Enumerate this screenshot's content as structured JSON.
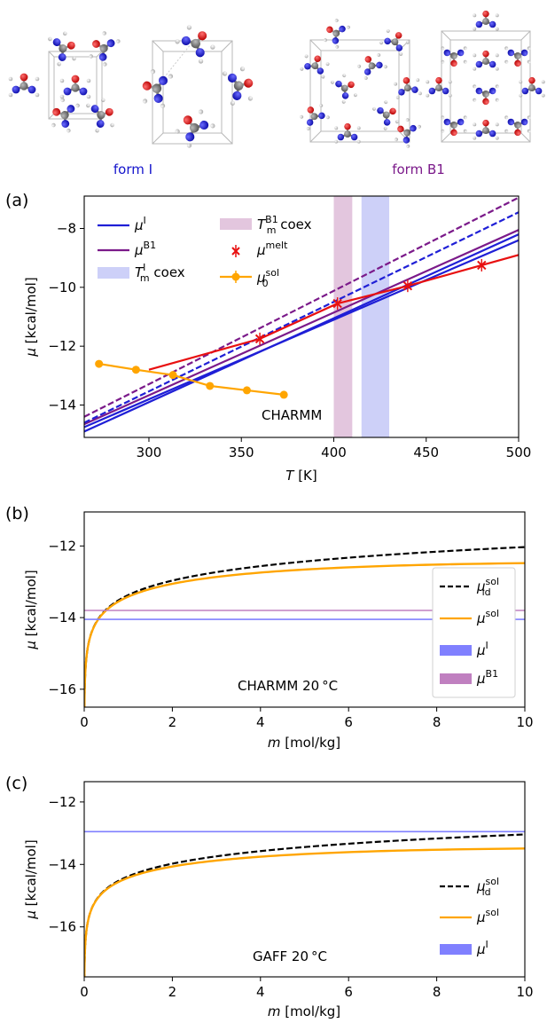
{
  "top": {
    "form_i_label": "form I",
    "form_b1_label": "form B1",
    "form_i_color": "#1515cc",
    "form_b1_color": "#7b1a8a"
  },
  "chart_data": [
    {
      "panel": "(a)",
      "type": "line",
      "xlabel": "T [K]",
      "ylabel": "μ [kcal/mol]",
      "xlim": [
        265,
        500
      ],
      "ylim": [
        -15.1,
        -6.9
      ],
      "xticks": [
        300,
        350,
        400,
        450,
        500
      ],
      "yticks": [
        -14,
        -12,
        -10,
        -8
      ],
      "annotation": "CHARMM",
      "legend_position": "top-left",
      "series": [
        {
          "name": "μ^I",
          "color": "#1f1fd6",
          "style": "solid",
          "x": [
            265,
            500
          ],
          "y": [
            -14.9,
            -8.2
          ]
        },
        {
          "name": "",
          "color": "#1f1fd6",
          "style": "solid",
          "x": [
            265,
            500
          ],
          "y": [
            -14.75,
            -8.4
          ]
        },
        {
          "name": "μ^B1",
          "color": "#7b1a8a",
          "style": "solid",
          "x": [
            265,
            500
          ],
          "y": [
            -14.65,
            -8.05
          ]
        },
        {
          "name": "",
          "color": "#1f1fd6",
          "style": "dashed",
          "x": [
            265,
            500
          ],
          "y": [
            -14.6,
            -7.45
          ]
        },
        {
          "name": "",
          "color": "#7b1a8a",
          "style": "dashed",
          "x": [
            265,
            500
          ],
          "y": [
            -14.4,
            -6.95
          ]
        },
        {
          "name": "",
          "color": "#e81010",
          "style": "solid",
          "x": [
            300,
            360,
            402,
            440,
            480,
            500
          ],
          "y": [
            -12.8,
            -11.75,
            -10.55,
            -9.95,
            -9.25,
            -8.9
          ]
        },
        {
          "name": "μ^melt",
          "color": "#e81010",
          "style": "markers",
          "x": [
            360,
            402,
            440,
            480
          ],
          "y": [
            -11.75,
            -10.55,
            -9.95,
            -9.25
          ]
        },
        {
          "name": "μ0^sol",
          "color": "#ffa500",
          "style": "line-markers",
          "x": [
            273,
            293,
            313,
            333,
            353,
            373
          ],
          "y": [
            -12.6,
            -12.8,
            -12.98,
            -13.35,
            -13.5,
            -13.65
          ]
        }
      ],
      "bands": [
        {
          "name": "T_m^B1 coex",
          "color": "#e3c6de",
          "x": [
            400,
            410
          ]
        },
        {
          "name": "T_m^I coex",
          "color": "#cdd0f8",
          "x": [
            415,
            430
          ]
        }
      ]
    },
    {
      "panel": "(b)",
      "type": "line",
      "xlabel": "m [mol/kg]",
      "ylabel": "μ [kcal/mol]",
      "xlim": [
        0,
        10
      ],
      "ylim": [
        -16.5,
        -11.05
      ],
      "xticks": [
        0,
        2,
        4,
        6,
        8,
        10
      ],
      "yticks": [
        -16,
        -14,
        -12
      ],
      "annotation": "CHARMM 20°C",
      "legend_position": "right",
      "series": [
        {
          "name": "μ_id^sol",
          "color": "#000000",
          "style": "dashed",
          "mu0": -13.37,
          "slope": 0.582
        },
        {
          "name": "μ^sol",
          "color": "#ffa500",
          "style": "solid",
          "mu0": -13.37,
          "slope": 0.582,
          "dev": 0.045
        },
        {
          "name": "μ^I",
          "color": "#8080ff",
          "style": "hline",
          "y": -14.05
        },
        {
          "name": "μ^B1",
          "color": "#c080c0",
          "style": "hline",
          "y": -13.8
        }
      ]
    },
    {
      "panel": "(c)",
      "type": "line",
      "xlabel": "m [mol/kg]",
      "ylabel": "μ [kcal/mol]",
      "xlim": [
        0,
        10
      ],
      "ylim": [
        -17.6,
        -11.35
      ],
      "xticks": [
        0,
        2,
        4,
        6,
        8,
        10
      ],
      "yticks": [
        -16,
        -14,
        -12
      ],
      "annotation": "GAFF 20°C",
      "legend_position": "right",
      "series": [
        {
          "name": "μ_id^sol",
          "color": "#000000",
          "style": "dashed",
          "mu0": -14.38,
          "slope": 0.582
        },
        {
          "name": "μ^sol",
          "color": "#ffa500",
          "style": "solid",
          "mu0": -14.38,
          "slope": 0.582,
          "dev": 0.045
        },
        {
          "name": "μ^I",
          "color": "#8080ff",
          "style": "hline",
          "y": -12.95
        }
      ]
    }
  ]
}
